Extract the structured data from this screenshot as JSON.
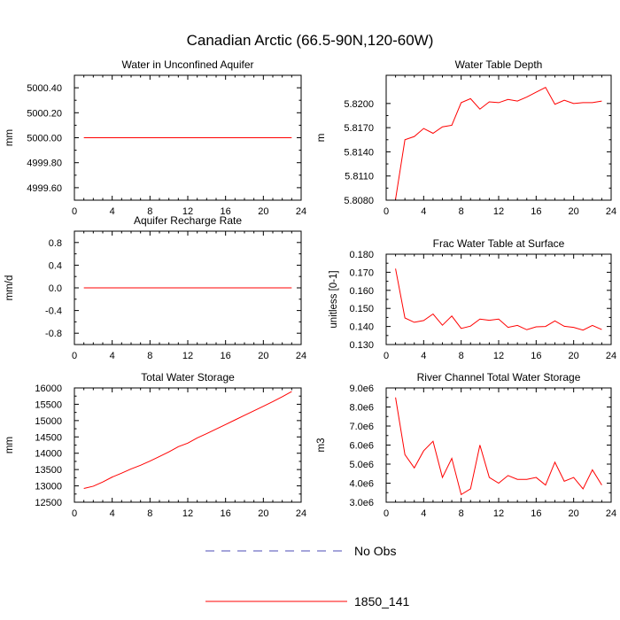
{
  "title": "Canadian Arctic (66.5-90N,120-60W)",
  "legend": [
    {
      "label": "No Obs",
      "color": "#4b4bb4",
      "style": "dashed"
    },
    {
      "label": "1850_141",
      "color": "#ff0000",
      "style": "solid"
    }
  ],
  "chart_data": [
    {
      "type": "line",
      "title": "Water in Unconfined Aquifer",
      "ylabel": "mm",
      "xlim": [
        0,
        24
      ],
      "ylim": [
        4999.5,
        5000.5
      ],
      "xticks": [
        0,
        4,
        8,
        12,
        16,
        20,
        24
      ],
      "yticks": [
        4999.6,
        4999.8,
        5000.0,
        5000.2,
        5000.4
      ],
      "ytick_labels": [
        "4999.60",
        "4999.80",
        "5000.00",
        "5000.20",
        "5000.40"
      ],
      "series": [
        {
          "name": "1850_141",
          "color": "#ff0000",
          "x": [
            1,
            2,
            3,
            4,
            5,
            6,
            7,
            8,
            9,
            10,
            11,
            12,
            13,
            14,
            15,
            16,
            17,
            18,
            19,
            20,
            21,
            22,
            23
          ],
          "y": [
            5000,
            5000,
            5000,
            5000,
            5000,
            5000,
            5000,
            5000,
            5000,
            5000,
            5000,
            5000,
            5000,
            5000,
            5000,
            5000,
            5000,
            5000,
            5000,
            5000,
            5000,
            5000,
            5000
          ]
        }
      ]
    },
    {
      "type": "line",
      "title": "Water Table Depth",
      "ylabel": "m",
      "xlim": [
        0,
        24
      ],
      "ylim": [
        5.808,
        5.8235
      ],
      "xticks": [
        0,
        4,
        8,
        12,
        16,
        20,
        24
      ],
      "yticks": [
        5.808,
        5.811,
        5.814,
        5.817,
        5.82
      ],
      "ytick_labels": [
        "5.8080",
        "5.8110",
        "5.8140",
        "5.8170",
        "5.8200"
      ],
      "series": [
        {
          "name": "1850_141",
          "color": "#ff0000",
          "x": [
            1,
            2,
            3,
            4,
            5,
            6,
            7,
            8,
            9,
            10,
            11,
            12,
            13,
            14,
            15,
            16,
            17,
            18,
            19,
            20,
            21,
            22,
            23
          ],
          "y": [
            5.8081,
            5.8155,
            5.8159,
            5.8169,
            5.8163,
            5.8171,
            5.8173,
            5.8201,
            5.8206,
            5.8193,
            5.8202,
            5.8201,
            5.8205,
            5.8203,
            5.8208,
            5.8214,
            5.822,
            5.8199,
            5.8204,
            5.82,
            5.8201,
            5.8201,
            5.8203
          ]
        }
      ]
    },
    {
      "type": "line",
      "title": "Aquifer Recharge Rate",
      "ylabel": "mm/d",
      "xlim": [
        0,
        24
      ],
      "ylim": [
        -1.0,
        1.0
      ],
      "xticks": [
        0,
        4,
        8,
        12,
        16,
        20,
        24
      ],
      "yticks": [
        -0.8,
        -0.4,
        0.0,
        0.4,
        0.8
      ],
      "ytick_labels": [
        "-0.8",
        "-0.4",
        "0.0",
        "0.4",
        "0.8"
      ],
      "series": [
        {
          "name": "1850_141",
          "color": "#ff0000",
          "x": [
            1,
            2,
            3,
            4,
            5,
            6,
            7,
            8,
            9,
            10,
            11,
            12,
            13,
            14,
            15,
            16,
            17,
            18,
            19,
            20,
            21,
            22,
            23
          ],
          "y": [
            0,
            0,
            0,
            0,
            0,
            0,
            0,
            0,
            0,
            0,
            0,
            0,
            0,
            0,
            0,
            0,
            0,
            0,
            0,
            0,
            0,
            0,
            0
          ]
        }
      ]
    },
    {
      "type": "line",
      "title": "Frac Water Table at Surface",
      "ylabel": "unitless [0-1]",
      "xlim": [
        0,
        24
      ],
      "ylim": [
        0.13,
        0.18
      ],
      "xticks": [
        0,
        4,
        8,
        12,
        16,
        20,
        24
      ],
      "yticks": [
        0.13,
        0.14,
        0.15,
        0.16,
        0.17,
        0.18
      ],
      "ytick_labels": [
        "0.130",
        "0.140",
        "0.150",
        "0.160",
        "0.170",
        "0.180"
      ],
      "series": [
        {
          "name": "1850_141",
          "color": "#ff0000",
          "x": [
            1,
            2,
            3,
            4,
            5,
            6,
            7,
            8,
            9,
            10,
            11,
            12,
            13,
            14,
            15,
            16,
            17,
            18,
            19,
            20,
            21,
            22,
            23
          ],
          "y": [
            0.172,
            0.1447,
            0.1423,
            0.1433,
            0.1469,
            0.1407,
            0.1458,
            0.1389,
            0.1402,
            0.1441,
            0.1434,
            0.1441,
            0.1395,
            0.1406,
            0.1382,
            0.1398,
            0.14,
            0.1431,
            0.1401,
            0.1395,
            0.138,
            0.1406,
            0.1383
          ]
        }
      ]
    },
    {
      "type": "line",
      "title": "Total Water Storage",
      "ylabel": "mm",
      "xlim": [
        0,
        24
      ],
      "ylim": [
        12500,
        16000
      ],
      "xticks": [
        0,
        4,
        8,
        12,
        16,
        20,
        24
      ],
      "yticks": [
        12500,
        13000,
        13500,
        14000,
        14500,
        15000,
        15500,
        16000
      ],
      "ytick_labels": [
        "12500",
        "13000",
        "13500",
        "14000",
        "14500",
        "15000",
        "15500",
        "16000"
      ],
      "series": [
        {
          "name": "1850_141",
          "color": "#ff0000",
          "x": [
            1,
            2,
            3,
            4,
            5,
            6,
            7,
            8,
            9,
            10,
            11,
            12,
            13,
            14,
            15,
            16,
            17,
            18,
            19,
            20,
            21,
            22,
            23
          ],
          "y": [
            12920,
            12990,
            13120,
            13270,
            13390,
            13520,
            13630,
            13760,
            13900,
            14040,
            14200,
            14310,
            14470,
            14600,
            14740,
            14880,
            15020,
            15160,
            15300,
            15440,
            15580,
            15730,
            15890
          ]
        }
      ]
    },
    {
      "type": "line",
      "title": "River Channel Total Water Storage",
      "ylabel": "m3",
      "xlim": [
        0,
        24
      ],
      "ylim": [
        3000000,
        9000000
      ],
      "xticks": [
        0,
        4,
        8,
        12,
        16,
        20,
        24
      ],
      "yticks": [
        3000000,
        4000000,
        5000000,
        6000000,
        7000000,
        8000000,
        9000000
      ],
      "ytick_labels": [
        "3.0e6",
        "4.0e6",
        "5.0e6",
        "6.0e6",
        "7.0e6",
        "8.0e6",
        "9.0e6"
      ],
      "series": [
        {
          "name": "1850_141",
          "color": "#ff0000",
          "x": [
            1,
            2,
            3,
            4,
            5,
            6,
            7,
            8,
            9,
            10,
            11,
            12,
            13,
            14,
            15,
            16,
            17,
            18,
            19,
            20,
            21,
            22,
            23
          ],
          "y": [
            8500000,
            5500000,
            4800000,
            5700000,
            6200000,
            4300000,
            5300000,
            3400000,
            3700000,
            6000000,
            4300000,
            4000000,
            4400000,
            4200000,
            4200000,
            4300000,
            3900000,
            5100000,
            4100000,
            4300000,
            3700000,
            4700000,
            3900000
          ]
        }
      ]
    }
  ]
}
